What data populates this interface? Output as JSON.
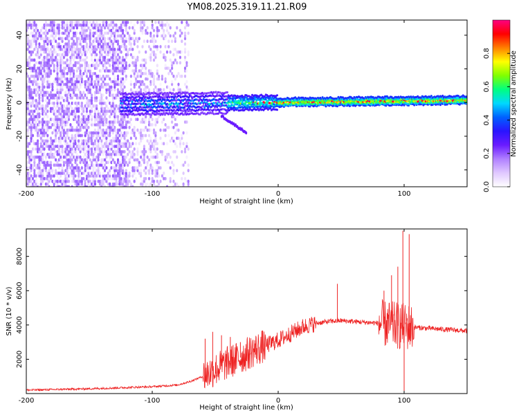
{
  "title": "YM08.2025.319.11.21.R09",
  "chart_data": [
    {
      "id": "spectrogram",
      "type": "heatmap",
      "xlabel": "Height of straight line (km)",
      "ylabel": "Frequency (Hz)",
      "xlim": [
        -200,
        150
      ],
      "ylim": [
        -50,
        49
      ],
      "xticks": [
        -200,
        -100,
        0,
        100
      ],
      "yticks": [
        -40,
        -20,
        0,
        20,
        40
      ],
      "colorbar": {
        "label": "Normalized spectral amplitude",
        "range": [
          0,
          1
        ],
        "ticks": [
          "0.0",
          "0.2",
          "0.4",
          "0.6",
          "0.8"
        ],
        "tick_values": [
          0.0,
          0.2,
          0.4,
          0.6,
          0.8
        ],
        "colors": [
          "#ffffff",
          "#e0c8ff",
          "#b080ff",
          "#6a1bff",
          "#2a14ff",
          "#0060ff",
          "#00d8ff",
          "#00ff80",
          "#80ff00",
          "#ffff00",
          "#ff8000",
          "#ff0000",
          "#ff0080"
        ]
      },
      "features": [
        {
          "name": "noise-region",
          "x_range": [
            -200,
            -70
          ],
          "freq_range": [
            -50,
            49
          ],
          "amplitude": [
            0.02,
            0.2
          ]
        },
        {
          "name": "signal-band",
          "x_range": [
            -125,
            150
          ],
          "center_freq_start": -1,
          "center_freq_end": 1.5,
          "amplitude": [
            0.3,
            1.0
          ]
        },
        {
          "name": "falling-branch",
          "x_start": -45,
          "x_end": -25,
          "freq_start": -8,
          "freq_end": -18,
          "amplitude": 0.25
        }
      ]
    },
    {
      "id": "snr",
      "type": "line",
      "xlabel": "Height of straight line (km)",
      "ylabel": "SNR (10 * v/v)",
      "xlim": [
        -200,
        150
      ],
      "ylim": [
        0,
        9600
      ],
      "xticks": [
        -200,
        -100,
        0,
        100
      ],
      "yticks": [
        2000,
        4000,
        6000,
        8000
      ],
      "color": "#ee2222",
      "trend": [
        [
          -200,
          200
        ],
        [
          -150,
          280
        ],
        [
          -100,
          400
        ],
        [
          -80,
          500
        ],
        [
          -70,
          700
        ],
        [
          -60,
          1000
        ],
        [
          -50,
          1400
        ],
        [
          -40,
          1800
        ],
        [
          -30,
          2100
        ],
        [
          -20,
          2500
        ],
        [
          -10,
          2800
        ],
        [
          0,
          3100
        ],
        [
          10,
          3500
        ],
        [
          20,
          3900
        ],
        [
          30,
          4100
        ],
        [
          40,
          4200
        ],
        [
          50,
          4250
        ],
        [
          60,
          4200
        ],
        [
          70,
          4150
        ],
        [
          80,
          4100
        ],
        [
          90,
          4000
        ],
        [
          100,
          3900
        ],
        [
          110,
          3850
        ],
        [
          120,
          3800
        ],
        [
          130,
          3750
        ],
        [
          140,
          3700
        ],
        [
          150,
          3650
        ]
      ],
      "spikes": [
        [
          -58,
          3200
        ],
        [
          -52,
          3600
        ],
        [
          -45,
          3400
        ],
        [
          -38,
          3300
        ],
        [
          -30,
          3000
        ],
        [
          47,
          6400
        ],
        [
          84,
          6000
        ],
        [
          90,
          6900
        ],
        [
          95,
          7400
        ],
        [
          99,
          9500
        ],
        [
          104,
          9300
        ],
        [
          100,
          100
        ]
      ]
    }
  ]
}
